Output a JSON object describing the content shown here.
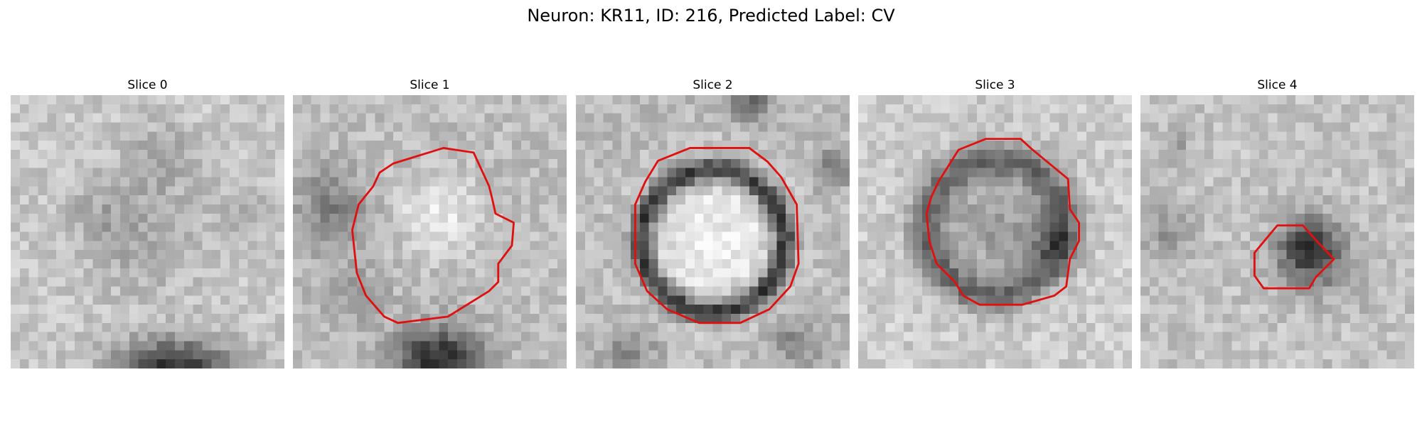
{
  "figure": {
    "title": "Neuron: KR11, ID: 216, Predicted Label: CV"
  },
  "panels": [
    {
      "title": "Slice 0"
    },
    {
      "title": "Slice 1"
    },
    {
      "title": "Slice 2"
    },
    {
      "title": "Slice 3"
    },
    {
      "title": "Slice 4"
    }
  ],
  "overlay": {
    "contour_color": "#e01010",
    "colormap": "grayscale"
  }
}
